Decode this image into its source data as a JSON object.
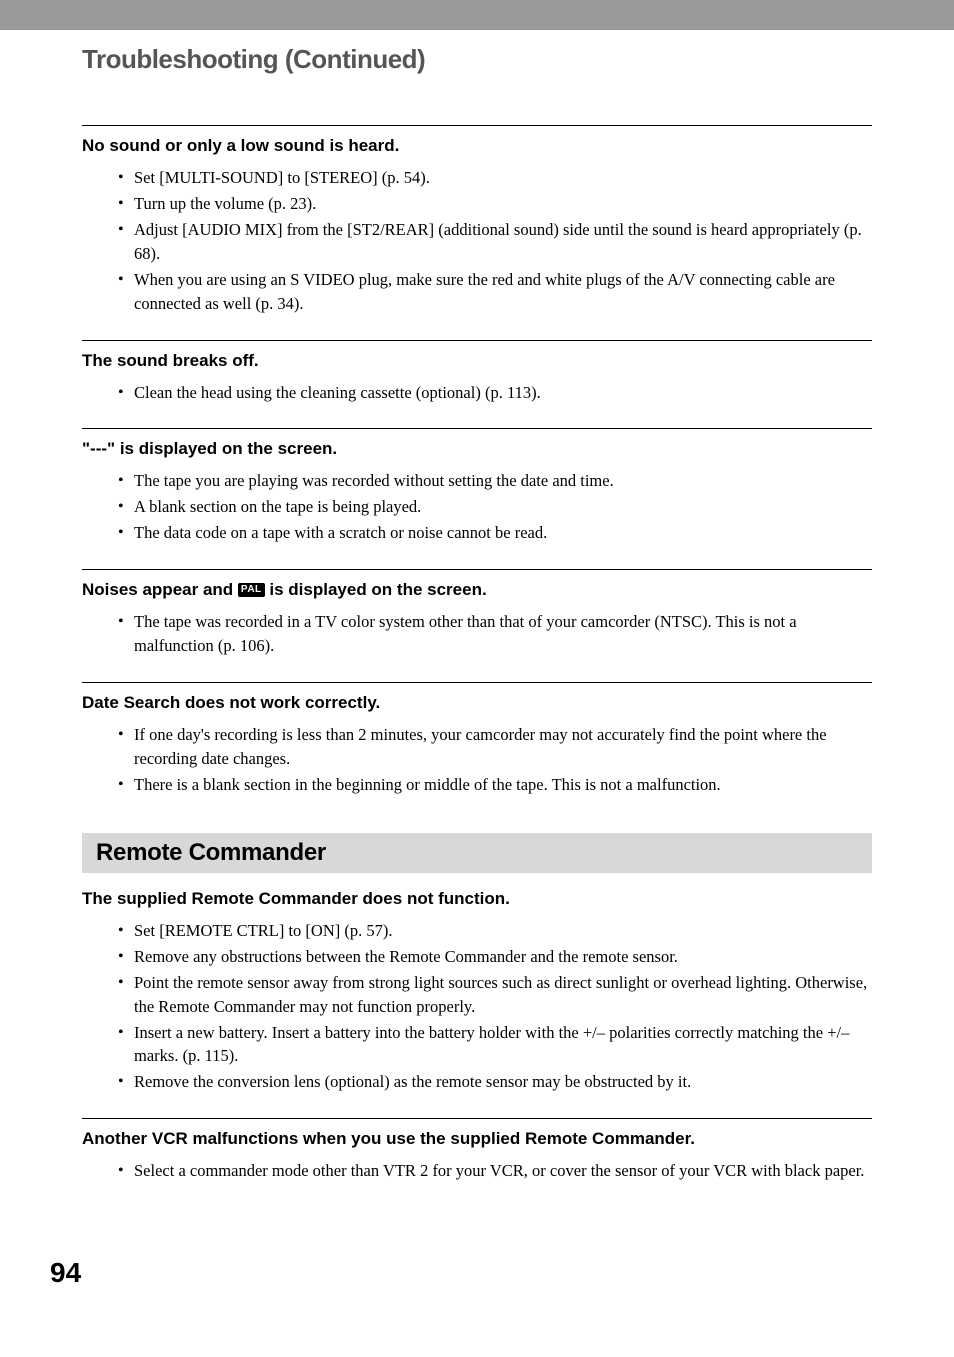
{
  "header_bar_color": "#9a9a9a",
  "page_title": "Troubleshooting (Continued)",
  "page_number": "94",
  "section_header": "Remote Commander",
  "issues": {
    "no_sound": {
      "title": "No sound or only a low sound is heard.",
      "bullets": [
        "Set [MULTI-SOUND] to [STEREO] (p. 54).",
        "Turn up the volume (p. 23).",
        "Adjust [AUDIO MIX] from the [ST2/REAR] (additional sound) side until the sound is heard appropriately (p. 68).",
        "When you are using an S VIDEO plug, make sure the red and white plugs of the A/V connecting cable are connected as well (p. 34)."
      ]
    },
    "sound_breaks": {
      "title": "The sound breaks off.",
      "bullets": [
        "Clean the head using the cleaning cassette (optional) (p. 113)."
      ]
    },
    "dashes_displayed": {
      "title": "\"---\" is displayed on the screen.",
      "bullets": [
        "The tape you are playing was recorded without setting the date and time.",
        "A blank section on the tape is being played.",
        "The data code on a tape with a scratch or noise cannot be read."
      ]
    },
    "noises_appear": {
      "title_part1": "Noises appear and ",
      "title_part2": " is displayed on the screen.",
      "pal_label": "PAL",
      "bullets": [
        "The tape was recorded in a TV color system other than that of your camcorder (NTSC). This is not a malfunction (p. 106)."
      ]
    },
    "date_search": {
      "title": "Date Search does not work correctly.",
      "bullets": [
        "If one day's recording is less than 2 minutes, your camcorder may not accurately find the point where the recording date changes.",
        "There is a blank section in the beginning or middle of the tape. This is not a malfunction."
      ]
    },
    "remote_no_function": {
      "title": "The supplied Remote Commander does not function.",
      "bullets": [
        "Set [REMOTE CTRL] to [ON] (p. 57).",
        "Remove any obstructions between the Remote Commander and the remote sensor.",
        "Point the remote sensor away from strong light sources such as direct sunlight or overhead lighting. Otherwise, the Remote Commander may not function properly.",
        "Insert a new battery. Insert a battery into the battery holder with the +/– polarities correctly matching the +/– marks. (p. 115).",
        "Remove the conversion lens (optional) as the remote sensor may be obstructed by it."
      ]
    },
    "vcr_malfunction": {
      "title": "Another VCR malfunctions when you use the supplied Remote Commander.",
      "bullets": [
        "Select a commander mode other than VTR 2 for your VCR, or cover the sensor of your VCR with black paper."
      ]
    }
  }
}
